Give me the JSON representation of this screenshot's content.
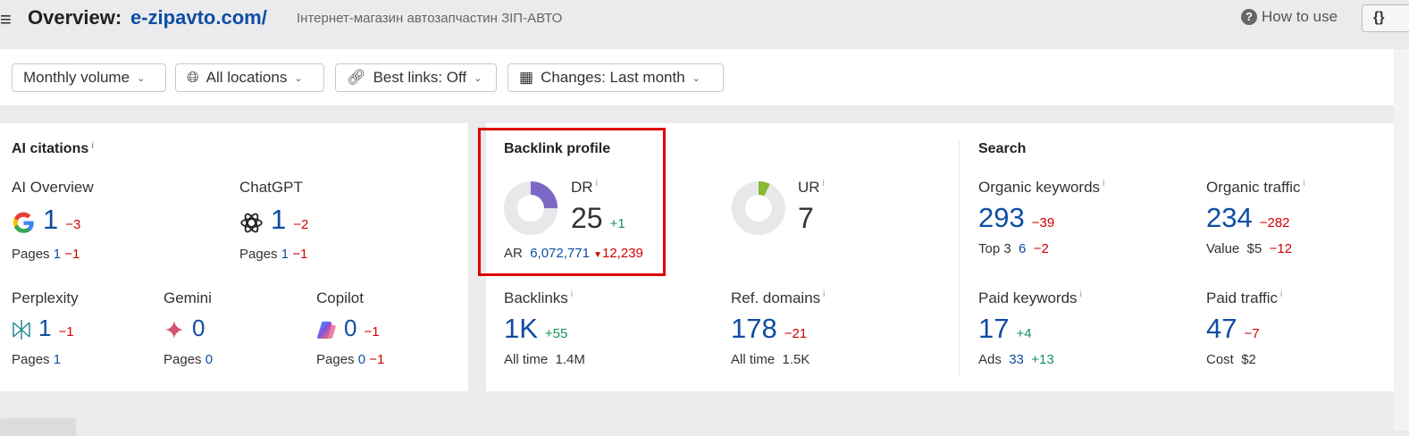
{
  "header": {
    "title_prefix": "Overview:",
    "domain": "e-zipavto.com/",
    "subtitle": "Інтернет-магазин автозапчастин ЗІП-АВТО",
    "how_to_use": "How to use",
    "api_button": "{}"
  },
  "filters": {
    "volume": "Monthly volume",
    "locations": "All locations",
    "best_links": "Best links: Off",
    "changes": "Changes: Last month"
  },
  "ai_citations": {
    "title": "AI citations",
    "items": [
      {
        "name": "AI Overview",
        "value": "1",
        "delta": "−3",
        "pages_label": "Pages",
        "pages": "1",
        "pages_delta": "−1"
      },
      {
        "name": "ChatGPT",
        "value": "1",
        "delta": "−2",
        "pages_label": "Pages",
        "pages": "1",
        "pages_delta": "−1"
      },
      {
        "name": "Perplexity",
        "value": "1",
        "delta": "−1",
        "pages_label": "Pages",
        "pages": "1",
        "pages_delta": ""
      },
      {
        "name": "Gemini",
        "value": "0",
        "delta": "",
        "pages_label": "Pages",
        "pages": "0",
        "pages_delta": ""
      },
      {
        "name": "Copilot",
        "value": "0",
        "delta": "−1",
        "pages_label": "Pages",
        "pages": "0",
        "pages_delta": "−1"
      }
    ]
  },
  "backlink": {
    "title": "Backlink profile",
    "dr_label": "DR",
    "dr": "25",
    "dr_percent": 25,
    "dr_delta": "+1",
    "ar_label": "AR",
    "ar": "6,072,771",
    "ar_delta": "12,239",
    "ur_label": "UR",
    "ur": "7",
    "ur_percent": 7,
    "backlinks_label": "Backlinks",
    "backlinks": "1K",
    "backlinks_delta": "+55",
    "backlinks_alltime_label": "All time",
    "backlinks_alltime": "1.4M",
    "refdomains_label": "Ref. domains",
    "refdomains": "178",
    "refdomains_delta": "−21",
    "refdomains_alltime_label": "All time",
    "refdomains_alltime": "1.5K"
  },
  "search": {
    "title": "Search",
    "organic_keywords": {
      "label": "Organic keywords",
      "value": "293",
      "delta": "−39",
      "sub_label": "Top 3",
      "sub": "6",
      "sub_delta": "−2"
    },
    "organic_traffic": {
      "label": "Organic traffic",
      "value": "234",
      "delta": "−282",
      "sub_label": "Value",
      "sub": "$5",
      "sub_delta": "−12"
    },
    "paid_keywords": {
      "label": "Paid keywords",
      "value": "17",
      "delta": "+4",
      "sub_label": "Ads",
      "sub": "33",
      "sub_delta": "+13"
    },
    "paid_traffic": {
      "label": "Paid traffic",
      "value": "47",
      "delta": "−7",
      "sub_label": "Cost",
      "sub": "$2"
    }
  },
  "colors": {
    "dr": "#7b68c4",
    "ur": "#8ab833",
    "highlight": "#e00000"
  }
}
